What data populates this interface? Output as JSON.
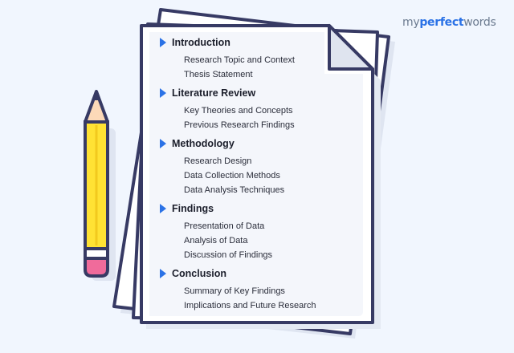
{
  "brand": {
    "logo_part1": "my",
    "logo_part2": "perfect",
    "logo_part3": "words",
    "logo_muted_color": "#6b7a8f",
    "logo_accent_color": "#2b72e6"
  },
  "colors": {
    "background": "#f1f6fe",
    "paper": "#ffffff",
    "outline_stroke": "#373a64",
    "arrow": "#2b72e6",
    "pencil_body": "#ffe234",
    "pencil_eraser": "#f06b9b",
    "pencil_wood": "#fcd9b8"
  },
  "outline": [
    {
      "title": "Introduction",
      "items": [
        "Research Topic and Context",
        "Thesis Statement"
      ]
    },
    {
      "title": "Literature Review",
      "items": [
        "Key Theories and Concepts",
        "Previous Research Findings"
      ]
    },
    {
      "title": "Methodology",
      "items": [
        "Research Design",
        "Data Collection Methods",
        "Data Analysis Techniques"
      ]
    },
    {
      "title": "Findings",
      "items": [
        "Presentation of Data",
        "Analysis of Data",
        "Discussion of Findings"
      ]
    },
    {
      "title": "Conclusion",
      "items": [
        "Summary of Key Findings",
        "Implications and Future Research"
      ]
    }
  ]
}
